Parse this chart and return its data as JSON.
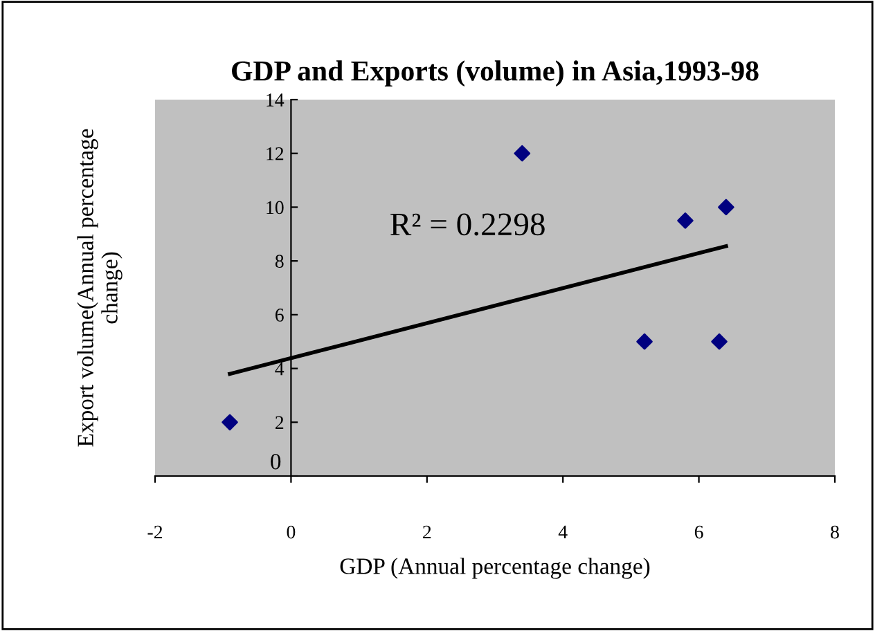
{
  "chart_data": {
    "type": "scatter",
    "title": "GDP and Exports (volume) in Asia,1993-98",
    "xlabel": "GDP (Annual percentage change)",
    "ylabel": "Export volume(Annual percentage change)",
    "series": [
      {
        "type": "scatter",
        "color": "#000080",
        "marker": "diamond",
        "x": [
          -0.9,
          3.4,
          5.8,
          6.4,
          5.2,
          6.3
        ],
        "values": [
          2,
          12,
          9.5,
          10,
          5,
          5
        ]
      },
      {
        "type": "line",
        "color": "#000000",
        "marker": "none",
        "line_style": "solid",
        "x": [
          -0.9,
          6.4
        ],
        "values": [
          3.8,
          8.55
        ]
      }
    ],
    "annotations": [
      "R² = 0.2298"
    ],
    "xlim": [
      -2,
      8
    ],
    "xticks": [
      -2,
      0,
      2,
      4,
      6,
      8
    ],
    "ylim": [
      0,
      14
    ],
    "yticks": [
      0,
      2,
      4,
      6,
      8,
      10,
      12,
      14
    ],
    "grid": false,
    "legend": false
  }
}
